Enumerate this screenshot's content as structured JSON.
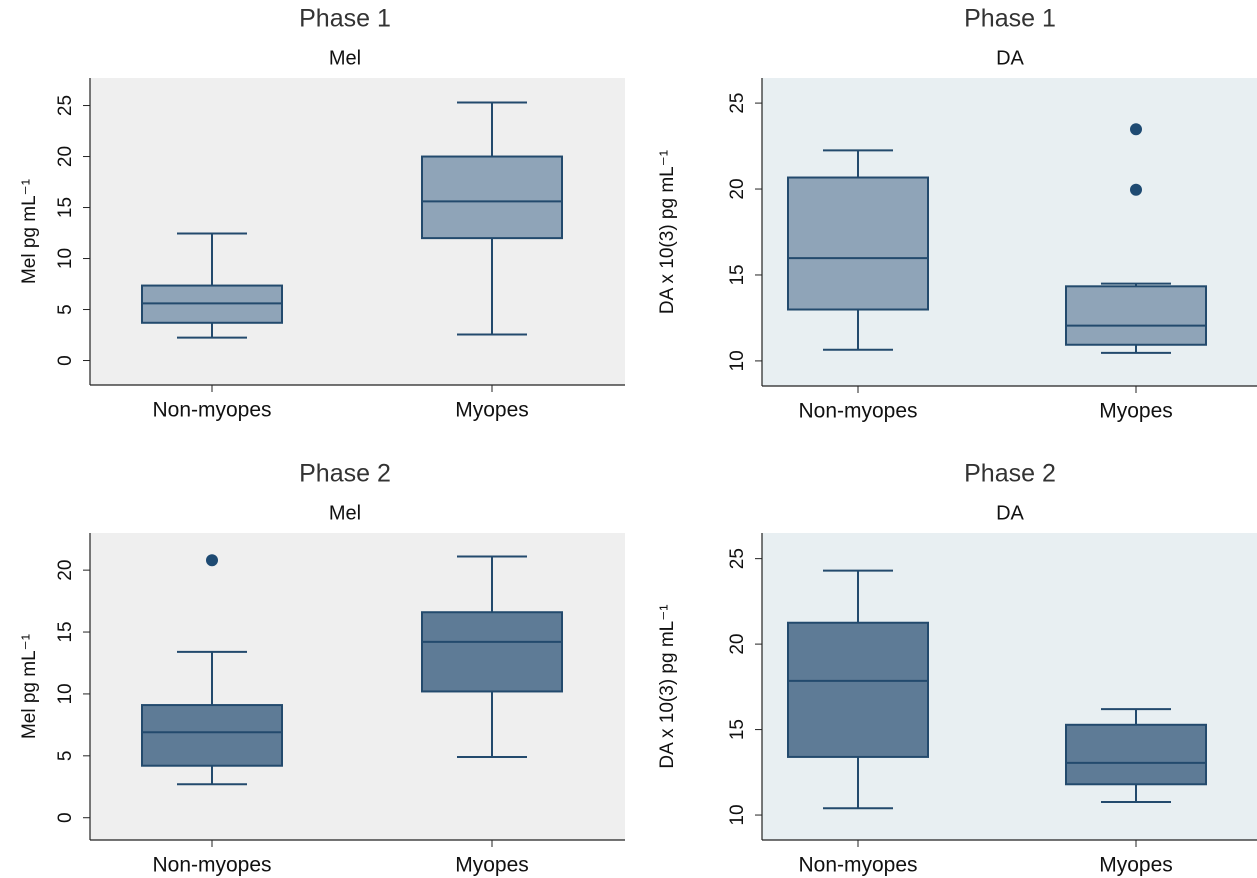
{
  "chart_data": [
    {
      "type": "box",
      "title": "Phase 1",
      "subtitle": "Mel",
      "ylabel": "Mel pg mL⁻¹",
      "categories": [
        "Non-myopes",
        "Myopes"
      ],
      "color": "#8fa4b8",
      "background": "#efefef",
      "boxes": [
        {
          "min": 2.25,
          "q1": 3.7,
          "median": 5.6,
          "q3": 7.35,
          "max": 12.45
        },
        {
          "min": 2.55,
          "q1": 12.0,
          "median": 15.6,
          "q3": 20.0,
          "max": 25.3
        }
      ],
      "ylim": [
        -2.4,
        27.7
      ],
      "yticks": [
        0,
        5,
        10,
        15,
        20,
        25
      ]
    },
    {
      "type": "box",
      "title": "Phase 1",
      "subtitle": "DA",
      "ylabel": "DA x 10(3) pg mL⁻¹",
      "categories": [
        "Non-myopes",
        "Myopes"
      ],
      "color": "#8fa4b8",
      "background": "#e8eff2",
      "boxes": [
        {
          "min": 10.65,
          "q1": 12.99,
          "median": 15.98,
          "q3": 20.67,
          "max": 22.25
        },
        {
          "min": 10.47,
          "q1": 10.94,
          "median": 12.05,
          "q3": 14.34,
          "max": 14.5,
          "outliers": [
            19.96,
            23.48
          ]
        }
      ],
      "ylim": [
        8.54,
        26.46
      ],
      "yticks": [
        10,
        15,
        20,
        25
      ]
    },
    {
      "type": "box",
      "title": "Phase 2",
      "subtitle": "Mel",
      "ylabel": "Mel pg mL⁻¹",
      "categories": [
        "Non-myopes",
        "Myopes"
      ],
      "color": "#5e7b96",
      "background": "#efefef",
      "boxes": [
        {
          "min": 2.7,
          "q1": 4.2,
          "median": 6.9,
          "q3": 9.1,
          "max": 13.4,
          "outliers": [
            20.8
          ]
        },
        {
          "min": 4.9,
          "q1": 10.2,
          "median": 14.2,
          "q3": 16.6,
          "max": 21.1
        }
      ],
      "ylim": [
        -1.8,
        23.0
      ],
      "yticks": [
        0,
        5,
        10,
        15,
        20
      ]
    },
    {
      "type": "box",
      "title": "Phase 2",
      "subtitle": "DA",
      "ylabel": "DA x 10(3) pg mL⁻¹",
      "categories": [
        "Non-myopes",
        "Myopes"
      ],
      "color": "#5e7b96",
      "background": "#e8eff2",
      "boxes": [
        {
          "min": 10.4,
          "q1": 13.4,
          "median": 17.85,
          "q3": 21.25,
          "max": 24.3
        },
        {
          "min": 10.76,
          "q1": 11.8,
          "median": 13.05,
          "q3": 15.28,
          "max": 16.2
        }
      ],
      "ylim": [
        8.54,
        26.5
      ],
      "yticks": [
        10,
        15,
        20,
        25
      ]
    }
  ]
}
